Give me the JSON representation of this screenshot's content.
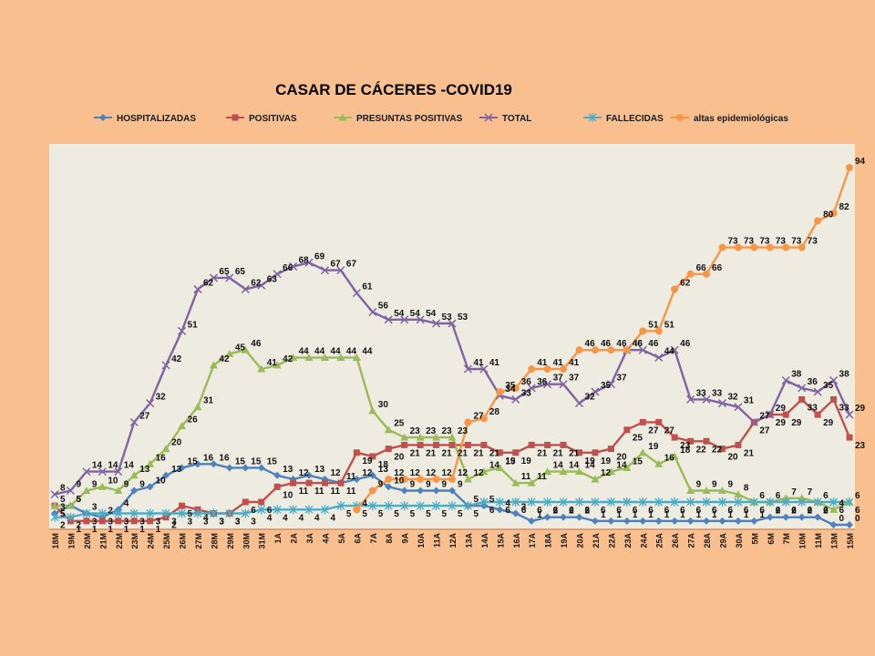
{
  "chart_data": {
    "type": "line",
    "title": "CASAR DE CÁCERES -COVID19",
    "legend_position": "top",
    "grid": false,
    "ylim": [
      0,
      100
    ],
    "background_color": "#F9BF8F",
    "plot_color": "#EEECE1",
    "categories": [
      "18M",
      "19M",
      "20M",
      "21M",
      "22M",
      "23M",
      "24M",
      "25M",
      "26M",
      "27M",
      "28M",
      "29M",
      "30M",
      "31M",
      "1A",
      "2A",
      "3A",
      "4A",
      "5A",
      "6A",
      "7A",
      "8A",
      "9A",
      "10A",
      "11A",
      "12A",
      "13A",
      "14A",
      "15A",
      "16A",
      "17A",
      "18A",
      "19A",
      "20A",
      "21A",
      "22A",
      "23A",
      "24A",
      "25A",
      "26A",
      "27A",
      "28A",
      "29A",
      "30A",
      "5M",
      "6M",
      "7M",
      "10M",
      "11M",
      "13M",
      "15M"
    ],
    "series": [
      {
        "name": "HOSPITALIZADAS",
        "color": "#4F81BD",
        "marker": "diamond",
        "values": [
          3,
          5,
          3,
          2,
          4,
          9,
          10,
          13,
          15,
          16,
          16,
          15,
          15,
          15,
          13,
          12,
          13,
          12,
          11,
          12,
          13,
          10,
          9,
          9,
          9,
          9,
          5,
          5,
          4,
          3,
          1,
          2,
          2,
          2,
          1,
          1,
          1,
          1,
          1,
          1,
          1,
          1,
          1,
          1,
          1,
          2,
          2,
          2,
          2,
          0,
          0
        ]
      },
      {
        "name": "POSITIVAS",
        "color": "#C0504D",
        "marker": "square",
        "values": [
          5,
          1,
          1,
          1,
          1,
          1,
          1,
          2,
          5,
          4,
          3,
          3,
          6,
          6,
          10,
          11,
          11,
          11,
          11,
          19,
          18,
          20,
          21,
          21,
          21,
          21,
          21,
          21,
          19,
          19,
          21,
          21,
          21,
          19,
          19,
          20,
          25,
          27,
          27,
          23,
          22,
          22,
          20,
          21,
          27,
          29,
          29,
          33,
          29,
          33,
          23
        ]
      },
      {
        "name": "PRESUNTAS POSITIVAS",
        "color": "#9BBB59",
        "marker": "triangle",
        "values": [
          5,
          5,
          9,
          10,
          9,
          13,
          16,
          20,
          26,
          31,
          42,
          45,
          46,
          41,
          42,
          44,
          44,
          44,
          44,
          44,
          30,
          25,
          23,
          23,
          23,
          23,
          12,
          14,
          15,
          11,
          11,
          14,
          14,
          14,
          12,
          14,
          15,
          19,
          16,
          18,
          9,
          9,
          9,
          8,
          6,
          6,
          7,
          7,
          6,
          4,
          6
        ]
      },
      {
        "name": "TOTAL",
        "color": "#8064A2",
        "marker": "x",
        "values": [
          8,
          9,
          14,
          14,
          14,
          27,
          32,
          42,
          51,
          62,
          65,
          65,
          62,
          63,
          66,
          68,
          69,
          67,
          67,
          61,
          56,
          54,
          54,
          54,
          53,
          53,
          41,
          41,
          34,
          33,
          36,
          37,
          37,
          32,
          35,
          37,
          46,
          46,
          44,
          46,
          33,
          33,
          32,
          31,
          27,
          29,
          38,
          36,
          35,
          38,
          29
        ]
      },
      {
        "name": "FALLECIDAS",
        "color": "#4BACC6",
        "marker": "star",
        "values": [
          2,
          2,
          3,
          3,
          3,
          3,
          3,
          3,
          3,
          3,
          3,
          3,
          3,
          4,
          4,
          4,
          4,
          4,
          5,
          5,
          5,
          5,
          5,
          5,
          5,
          5,
          5,
          6,
          6,
          6,
          6,
          6,
          6,
          6,
          6,
          6,
          6,
          6,
          6,
          6,
          6,
          6,
          6,
          6,
          6,
          6,
          6,
          6,
          6,
          6,
          6
        ]
      },
      {
        "name": "altas epidemiológicas",
        "color": "#F79646",
        "marker": "circle",
        "values": [
          null,
          null,
          null,
          null,
          null,
          null,
          null,
          null,
          null,
          null,
          null,
          null,
          null,
          null,
          null,
          null,
          null,
          null,
          null,
          4,
          9,
          12,
          12,
          12,
          12,
          12,
          27,
          28,
          35,
          36,
          41,
          41,
          41,
          46,
          46,
          46,
          46,
          51,
          51,
          62,
          66,
          66,
          73,
          73,
          73,
          73,
          73,
          73,
          80,
          82,
          94
        ]
      }
    ]
  }
}
